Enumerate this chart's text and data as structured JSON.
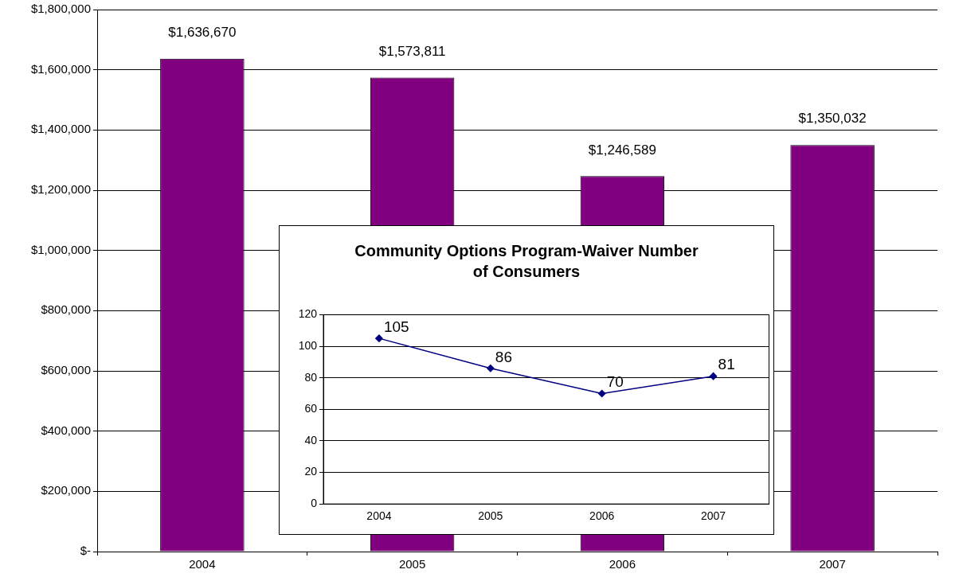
{
  "chart_data": [
    {
      "type": "bar",
      "categories": [
        "2004",
        "2005",
        "2006",
        "2007"
      ],
      "values": [
        1636670,
        1573811,
        1246589,
        1350032
      ],
      "color": "#800080",
      "value_labels": [
        "$1,636,670",
        "$1,573,811",
        "$1,246,589",
        "$1,350,032"
      ],
      "ylim": [
        0,
        1800000
      ],
      "yticks": [
        {
          "value": 0,
          "label": "$-"
        },
        {
          "value": 200000,
          "label": "$200,000"
        },
        {
          "value": 400000,
          "label": "$400,000"
        },
        {
          "value": 600000,
          "label": "$600,000"
        },
        {
          "value": 800000,
          "label": "$800,000"
        },
        {
          "value": 1000000,
          "label": "$1,000,000"
        },
        {
          "value": 1200000,
          "label": "$1,200,000"
        },
        {
          "value": 1400000,
          "label": "$1,400,000"
        },
        {
          "value": 1600000,
          "label": "$1,600,000"
        },
        {
          "value": 1800000,
          "label": "$1,800,000"
        }
      ],
      "grid": "y"
    },
    {
      "type": "line",
      "title": "Community Options Program-Waiver Number of Consumers",
      "categories": [
        "2004",
        "2005",
        "2006",
        "2007"
      ],
      "values": [
        105,
        86,
        70,
        81
      ],
      "color": "#000080",
      "marker": "diamond",
      "data_labels": true,
      "ylim": [
        0,
        120
      ],
      "yticks": [
        0,
        20,
        40,
        60,
        80,
        100,
        120
      ],
      "grid": "y"
    }
  ]
}
